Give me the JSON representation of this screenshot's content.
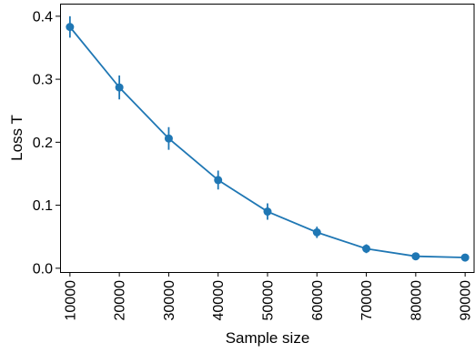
{
  "chart_data": {
    "type": "line",
    "title": "",
    "xlabel": "Sample size",
    "ylabel": "Loss T",
    "x": [
      10000,
      20000,
      30000,
      40000,
      50000,
      60000,
      70000,
      80000,
      90000
    ],
    "series": [
      {
        "values": [
          0.383,
          0.287,
          0.206,
          0.14,
          0.09,
          0.057,
          0.031,
          0.019,
          0.017
        ],
        "errors": [
          0.017,
          0.019,
          0.018,
          0.015,
          0.013,
          0.009,
          0.007,
          0.004,
          0.003
        ]
      }
    ],
    "xlim": [
      8000,
      92000
    ],
    "ylim": [
      -0.006,
      0.42
    ],
    "xticks": [
      10000,
      20000,
      30000,
      40000,
      50000,
      60000,
      70000,
      80000,
      90000
    ],
    "xtick_labels": [
      "10000",
      "20000",
      "30000",
      "40000",
      "50000",
      "60000",
      "70000",
      "80000",
      "90000"
    ],
    "yticks": [
      0.0,
      0.1,
      0.2,
      0.3,
      0.4
    ],
    "ytick_labels": [
      "0.0",
      "0.1",
      "0.2",
      "0.3",
      "0.4"
    ],
    "grid": false,
    "legend": "none",
    "xtick_rotation": "vertical",
    "colors": {
      "series": "#1f77b4",
      "axes": "#000000"
    }
  }
}
